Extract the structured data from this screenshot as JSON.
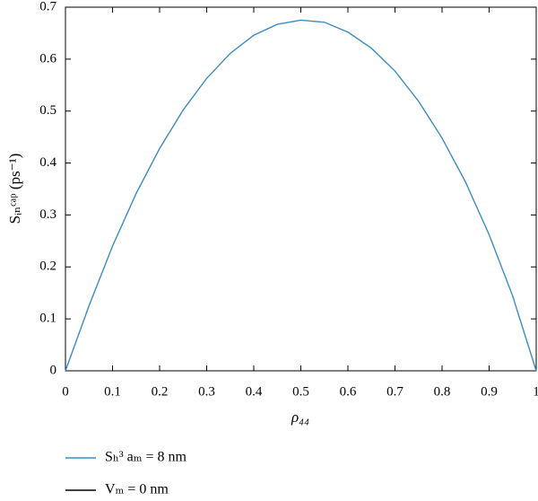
{
  "chart_data": {
    "type": "line",
    "x_label": "ρ₄₄",
    "y_label": "Sᵢₙᶜᵃᵖ (ps⁻¹)",
    "x": [
      0,
      0.05,
      0.1,
      0.15,
      0.2,
      0.25,
      0.3,
      0.35,
      0.4,
      0.45,
      0.5,
      0.55,
      0.6,
      0.65,
      0.7,
      0.75,
      0.8,
      0.85,
      0.9,
      0.95,
      1
    ],
    "series": [
      {
        "name": "Sₕ³ aₘ = 8 nm",
        "color": "#3b8bc2",
        "values": [
          0,
          0.125,
          0.24,
          0.341,
          0.428,
          0.502,
          0.563,
          0.611,
          0.646,
          0.667,
          0.675,
          0.671,
          0.652,
          0.621,
          0.577,
          0.519,
          0.448,
          0.363,
          0.262,
          0.144,
          0
        ]
      },
      {
        "name": "Vₘ = 0 nm",
        "color": "#000000"
      }
    ],
    "xlim": [
      0,
      1
    ],
    "xticks": [
      0,
      0.1,
      0.2,
      0.3,
      0.4,
      0.5,
      0.6,
      0.7,
      0.8,
      0.9,
      1
    ],
    "ylim": [
      0,
      0.7
    ],
    "yticks": [
      0,
      0.1,
      0.2,
      0.3,
      0.4,
      0.5,
      0.6,
      0.7
    ],
    "legend": "below"
  }
}
